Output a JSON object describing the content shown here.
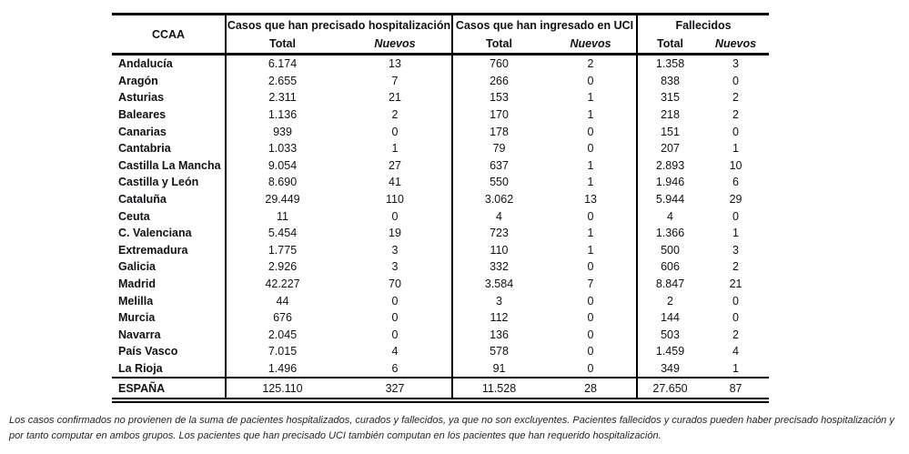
{
  "table": {
    "corner_label": "CCAA",
    "groups": [
      {
        "label": "Casos que han precisado hospitalización"
      },
      {
        "label": "Casos que han ingresado en UCI"
      },
      {
        "label": "Fallecidos"
      }
    ],
    "subheaders": {
      "total": "Total",
      "nuevos": "Nuevos"
    },
    "rows": [
      {
        "ccaa": "Andalucía",
        "hosp_total": "6.174",
        "hosp_nuevos": "13",
        "uci_total": "760",
        "uci_nuevos": "2",
        "fall_total": "1.358",
        "fall_nuevos": "3"
      },
      {
        "ccaa": "Aragón",
        "hosp_total": "2.655",
        "hosp_nuevos": "7",
        "uci_total": "266",
        "uci_nuevos": "0",
        "fall_total": "838",
        "fall_nuevos": "0"
      },
      {
        "ccaa": "Asturias",
        "hosp_total": "2.311",
        "hosp_nuevos": "21",
        "uci_total": "153",
        "uci_nuevos": "1",
        "fall_total": "315",
        "fall_nuevos": "2"
      },
      {
        "ccaa": "Baleares",
        "hosp_total": "1.136",
        "hosp_nuevos": "2",
        "uci_total": "170",
        "uci_nuevos": "1",
        "fall_total": "218",
        "fall_nuevos": "2"
      },
      {
        "ccaa": "Canarias",
        "hosp_total": "939",
        "hosp_nuevos": "0",
        "uci_total": "178",
        "uci_nuevos": "0",
        "fall_total": "151",
        "fall_nuevos": "0"
      },
      {
        "ccaa": "Cantabria",
        "hosp_total": "1.033",
        "hosp_nuevos": "1",
        "uci_total": "79",
        "uci_nuevos": "0",
        "fall_total": "207",
        "fall_nuevos": "1"
      },
      {
        "ccaa": "Castilla La Mancha",
        "hosp_total": "9.054",
        "hosp_nuevos": "27",
        "uci_total": "637",
        "uci_nuevos": "1",
        "fall_total": "2.893",
        "fall_nuevos": "10"
      },
      {
        "ccaa": "Castilla y León",
        "hosp_total": "8.690",
        "hosp_nuevos": "41",
        "uci_total": "550",
        "uci_nuevos": "1",
        "fall_total": "1.946",
        "fall_nuevos": "6"
      },
      {
        "ccaa": "Cataluña",
        "hosp_total": "29.449",
        "hosp_nuevos": "110",
        "uci_total": "3.062",
        "uci_nuevos": "13",
        "fall_total": "5.944",
        "fall_nuevos": "29"
      },
      {
        "ccaa": "Ceuta",
        "hosp_total": "11",
        "hosp_nuevos": "0",
        "uci_total": "4",
        "uci_nuevos": "0",
        "fall_total": "4",
        "fall_nuevos": "0"
      },
      {
        "ccaa": "C. Valenciana",
        "hosp_total": "5.454",
        "hosp_nuevos": "19",
        "uci_total": "723",
        "uci_nuevos": "1",
        "fall_total": "1.366",
        "fall_nuevos": "1"
      },
      {
        "ccaa": "Extremadura",
        "hosp_total": "1.775",
        "hosp_nuevos": "3",
        "uci_total": "110",
        "uci_nuevos": "1",
        "fall_total": "500",
        "fall_nuevos": "3"
      },
      {
        "ccaa": "Galicia",
        "hosp_total": "2.926",
        "hosp_nuevos": "3",
        "uci_total": "332",
        "uci_nuevos": "0",
        "fall_total": "606",
        "fall_nuevos": "2"
      },
      {
        "ccaa": "Madrid",
        "hosp_total": "42.227",
        "hosp_nuevos": "70",
        "uci_total": "3.584",
        "uci_nuevos": "7",
        "fall_total": "8.847",
        "fall_nuevos": "21"
      },
      {
        "ccaa": "Melilla",
        "hosp_total": "44",
        "hosp_nuevos": "0",
        "uci_total": "3",
        "uci_nuevos": "0",
        "fall_total": "2",
        "fall_nuevos": "0"
      },
      {
        "ccaa": "Murcia",
        "hosp_total": "676",
        "hosp_nuevos": "0",
        "uci_total": "112",
        "uci_nuevos": "0",
        "fall_total": "144",
        "fall_nuevos": "0"
      },
      {
        "ccaa": "Navarra",
        "hosp_total": "2.045",
        "hosp_nuevos": "0",
        "uci_total": "136",
        "uci_nuevos": "0",
        "fall_total": "503",
        "fall_nuevos": "2"
      },
      {
        "ccaa": "País Vasco",
        "hosp_total": "7.015",
        "hosp_nuevos": "4",
        "uci_total": "578",
        "uci_nuevos": "0",
        "fall_total": "1.459",
        "fall_nuevos": "4"
      },
      {
        "ccaa": "La Rioja",
        "hosp_total": "1.496",
        "hosp_nuevos": "6",
        "uci_total": "91",
        "uci_nuevos": "0",
        "fall_total": "349",
        "fall_nuevos": "1"
      }
    ],
    "total_row": {
      "ccaa": "ESPAÑA",
      "hosp_total": "125.110",
      "hosp_nuevos": "327",
      "uci_total": "11.528",
      "uci_nuevos": "28",
      "fall_total": "27.650",
      "fall_nuevos": "87"
    }
  },
  "footnote": "Los casos confirmados no provienen de la suma de pacientes hospitalizados, curados y fallecidos, ya que no son excluyentes. Pacientes fallecidos y curados pueden haber precisado hospitalización y por tanto computar en ambos grupos. Los pacientes que han precisado UCI también computan en los pacientes que han requerido hospitalización."
}
